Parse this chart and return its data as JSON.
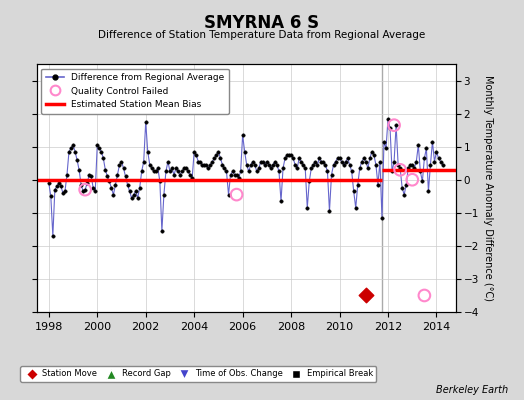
{
  "title": "SMYRNA 6 S",
  "subtitle": "Difference of Station Temperature Data from Regional Average",
  "ylabel": "Monthly Temperature Anomaly Difference (°C)",
  "xlim": [
    1997.5,
    2014.8
  ],
  "ylim": [
    -4.0,
    3.5
  ],
  "yticks": [
    -4,
    -3,
    -2,
    -1,
    0,
    1,
    2,
    3
  ],
  "xticks": [
    1998,
    2000,
    2002,
    2004,
    2006,
    2008,
    2010,
    2012,
    2014
  ],
  "bias_before": 0.0,
  "bias_after": 0.3,
  "bias_break_year": 2011.75,
  "vertical_line_year": 2011.75,
  "station_move_years": [
    2011.08
  ],
  "station_move_vals": [
    -3.5
  ],
  "qc_failed_years": [
    1999.5,
    2005.75,
    2012.25,
    2012.5,
    2013.0,
    2013.5
  ],
  "qc_failed_vals": [
    -0.3,
    -0.45,
    1.65,
    0.3,
    0.0,
    -3.5
  ],
  "background_color": "#d8d8d8",
  "plot_bg_color": "#ffffff",
  "line_color": "#6666cc",
  "bias_color": "#ff0000",
  "vline_color": "#aaaaaa",
  "station_move_color": "#cc0000",
  "qc_color": "#ff88cc",
  "grid_color": "#cccccc",
  "watermark": "Berkeley Earth",
  "data_x": [
    1998.0,
    1998.083,
    1998.167,
    1998.25,
    1998.333,
    1998.417,
    1998.5,
    1998.583,
    1998.667,
    1998.75,
    1998.833,
    1998.917,
    1999.0,
    1999.083,
    1999.167,
    1999.25,
    1999.333,
    1999.417,
    1999.5,
    1999.583,
    1999.667,
    1999.75,
    1999.833,
    1999.917,
    2000.0,
    2000.083,
    2000.167,
    2000.25,
    2000.333,
    2000.417,
    2000.5,
    2000.583,
    2000.667,
    2000.75,
    2000.833,
    2000.917,
    2001.0,
    2001.083,
    2001.167,
    2001.25,
    2001.333,
    2001.417,
    2001.5,
    2001.583,
    2001.667,
    2001.75,
    2001.833,
    2001.917,
    2002.0,
    2002.083,
    2002.167,
    2002.25,
    2002.333,
    2002.417,
    2002.5,
    2002.583,
    2002.667,
    2002.75,
    2002.833,
    2002.917,
    2003.0,
    2003.083,
    2003.167,
    2003.25,
    2003.333,
    2003.417,
    2003.5,
    2003.583,
    2003.667,
    2003.75,
    2003.833,
    2003.917,
    2004.0,
    2004.083,
    2004.167,
    2004.25,
    2004.333,
    2004.417,
    2004.5,
    2004.583,
    2004.667,
    2004.75,
    2004.833,
    2004.917,
    2005.0,
    2005.083,
    2005.167,
    2005.25,
    2005.333,
    2005.417,
    2005.5,
    2005.583,
    2005.667,
    2005.75,
    2005.833,
    2005.917,
    2006.0,
    2006.083,
    2006.167,
    2006.25,
    2006.333,
    2006.417,
    2006.5,
    2006.583,
    2006.667,
    2006.75,
    2006.833,
    2006.917,
    2007.0,
    2007.083,
    2007.167,
    2007.25,
    2007.333,
    2007.417,
    2007.5,
    2007.583,
    2007.667,
    2007.75,
    2007.833,
    2007.917,
    2008.0,
    2008.083,
    2008.167,
    2008.25,
    2008.333,
    2008.417,
    2008.5,
    2008.583,
    2008.667,
    2008.75,
    2008.833,
    2008.917,
    2009.0,
    2009.083,
    2009.167,
    2009.25,
    2009.333,
    2009.417,
    2009.5,
    2009.583,
    2009.667,
    2009.75,
    2009.833,
    2009.917,
    2010.0,
    2010.083,
    2010.167,
    2010.25,
    2010.333,
    2010.417,
    2010.5,
    2010.583,
    2010.667,
    2010.75,
    2010.833,
    2010.917,
    2011.0,
    2011.083,
    2011.167,
    2011.25,
    2011.333,
    2011.417,
    2011.5,
    2011.583,
    2011.667,
    2011.75,
    2011.833,
    2011.917,
    2012.0,
    2012.083,
    2012.167,
    2012.25,
    2012.333,
    2012.417,
    2012.5,
    2012.583,
    2012.667,
    2012.75,
    2012.833,
    2012.917,
    2013.0,
    2013.083,
    2013.167,
    2013.25,
    2013.333,
    2013.417,
    2013.5,
    2013.583,
    2013.667,
    2013.75,
    2013.833,
    2013.917,
    2014.0,
    2014.083,
    2014.167,
    2014.25
  ],
  "data_y": [
    -0.1,
    -0.5,
    -1.7,
    -0.3,
    -0.2,
    -0.1,
    -0.2,
    -0.4,
    -0.35,
    0.15,
    0.85,
    0.95,
    1.05,
    0.85,
    0.6,
    0.3,
    -0.15,
    -0.35,
    -0.3,
    -0.1,
    0.15,
    0.1,
    -0.25,
    -0.35,
    1.05,
    0.95,
    0.85,
    0.65,
    0.3,
    0.1,
    -0.05,
    -0.25,
    -0.45,
    -0.15,
    0.15,
    0.45,
    0.55,
    0.35,
    0.1,
    -0.15,
    -0.35,
    -0.55,
    -0.45,
    -0.35,
    -0.55,
    -0.25,
    0.25,
    0.55,
    1.75,
    0.85,
    0.45,
    0.35,
    0.25,
    0.25,
    0.35,
    -0.05,
    -1.55,
    -0.45,
    0.25,
    0.55,
    0.25,
    0.35,
    0.15,
    0.35,
    0.25,
    0.15,
    0.25,
    0.35,
    0.35,
    0.25,
    0.15,
    0.05,
    0.85,
    0.75,
    0.55,
    0.55,
    0.45,
    0.45,
    0.45,
    0.35,
    0.45,
    0.55,
    0.65,
    0.75,
    0.85,
    0.65,
    0.45,
    0.35,
    0.25,
    -0.45,
    0.15,
    0.25,
    0.15,
    0.15,
    0.05,
    0.25,
    1.35,
    0.85,
    0.45,
    0.25,
    0.45,
    0.55,
    0.45,
    0.25,
    0.35,
    0.55,
    0.55,
    0.45,
    0.55,
    0.45,
    0.35,
    0.45,
    0.55,
    0.45,
    0.25,
    -0.65,
    0.35,
    0.65,
    0.75,
    0.75,
    0.75,
    0.65,
    0.45,
    0.35,
    0.65,
    0.55,
    0.45,
    0.35,
    -0.85,
    -0.05,
    0.35,
    0.45,
    0.55,
    0.45,
    0.65,
    0.55,
    0.55,
    0.45,
    0.25,
    -0.95,
    0.15,
    0.45,
    0.55,
    0.65,
    0.65,
    0.55,
    0.45,
    0.55,
    0.65,
    0.45,
    0.25,
    -0.35,
    -0.85,
    -0.15,
    0.35,
    0.55,
    0.65,
    0.55,
    0.35,
    0.65,
    0.85,
    0.75,
    0.45,
    -0.15,
    0.55,
    -1.15,
    1.15,
    0.95,
    1.85,
    1.55,
    0.25,
    0.55,
    1.65,
    0.45,
    0.35,
    -0.25,
    -0.45,
    -0.15,
    0.35,
    0.45,
    0.45,
    0.35,
    0.55,
    1.05,
    0.25,
    -0.05,
    0.65,
    0.95,
    -0.35,
    0.45,
    1.15,
    0.55,
    0.85,
    0.65,
    0.55,
    0.45
  ]
}
